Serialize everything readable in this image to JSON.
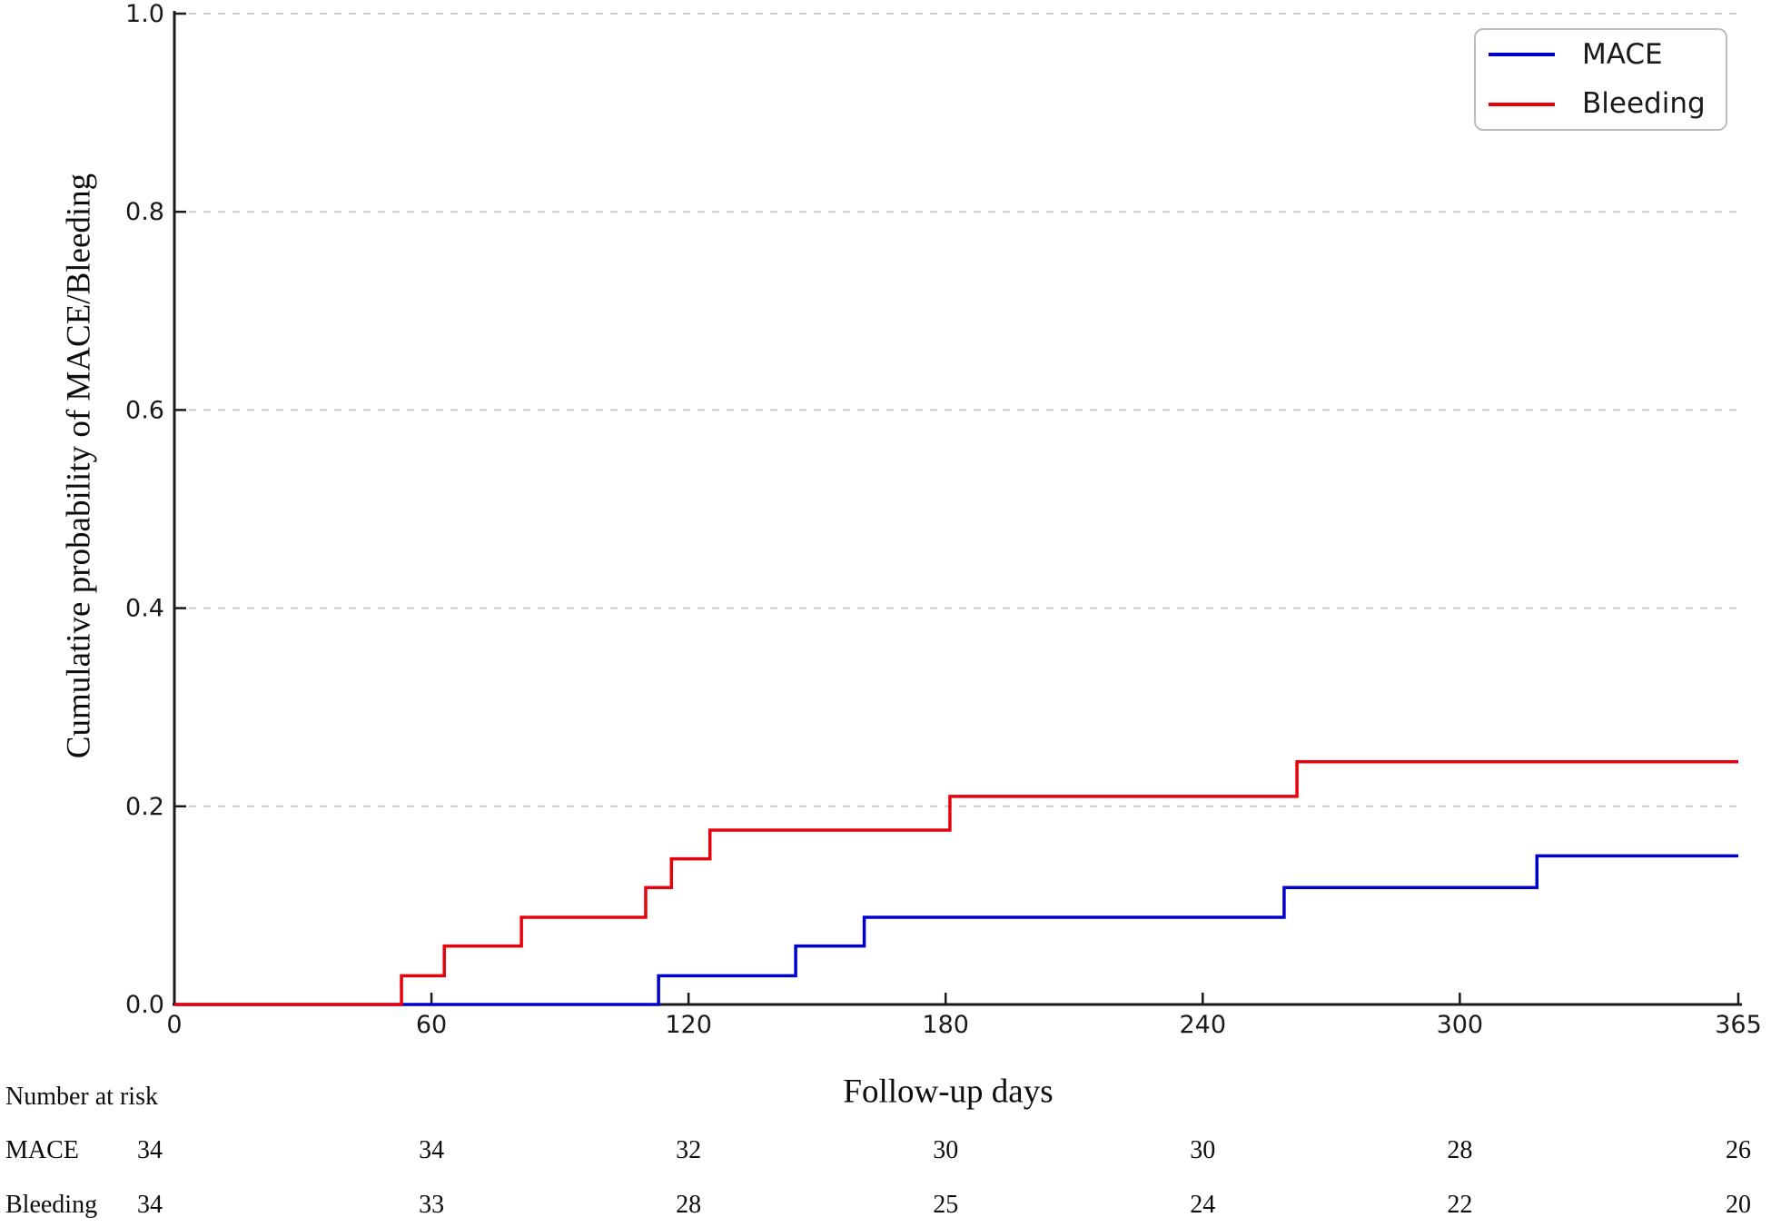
{
  "chart_data": {
    "type": "line",
    "subtype": "step-cumulative-incidence",
    "title": "",
    "xlabel": "Follow-up days",
    "ylabel": "Cumulative probability of MACE/Bleeding",
    "xlim": [
      0,
      365
    ],
    "ylim": [
      0,
      1.0
    ],
    "xticks": [
      0,
      60,
      120,
      180,
      240,
      300,
      365
    ],
    "ytick_labels": [
      "0.0",
      "0.2",
      "0.4",
      "0.6",
      "0.8",
      "1.0"
    ],
    "grid": {
      "horizontal": true,
      "style": "dashed",
      "color": "#cccccc"
    },
    "axis_color": "#1a1a1a",
    "legend": {
      "position": "top-right"
    },
    "series": [
      {
        "name": "MACE",
        "color": "#0000cd",
        "steps": [
          [
            0,
            0
          ],
          [
            113,
            0.029
          ],
          [
            145,
            0.059
          ],
          [
            161,
            0.088
          ],
          [
            259,
            0.118
          ],
          [
            318,
            0.15
          ],
          [
            365,
            0.15
          ]
        ]
      },
      {
        "name": "Bleeding",
        "color": "#e8000b",
        "steps": [
          [
            0,
            0
          ],
          [
            53,
            0.029
          ],
          [
            63,
            0.059
          ],
          [
            81,
            0.088
          ],
          [
            110,
            0.118
          ],
          [
            116,
            0.147
          ],
          [
            125,
            0.176
          ],
          [
            181,
            0.21
          ],
          [
            262,
            0.245
          ],
          [
            365,
            0.245
          ]
        ]
      }
    ],
    "number_at_risk": {
      "title": "Number at risk",
      "times": [
        0,
        60,
        120,
        180,
        240,
        300,
        365
      ],
      "rows": [
        {
          "label": "MACE",
          "values": [
            34,
            34,
            32,
            30,
            30,
            28,
            26
          ]
        },
        {
          "label": "Bleeding",
          "values": [
            34,
            33,
            28,
            25,
            24,
            22,
            20
          ]
        }
      ]
    }
  }
}
